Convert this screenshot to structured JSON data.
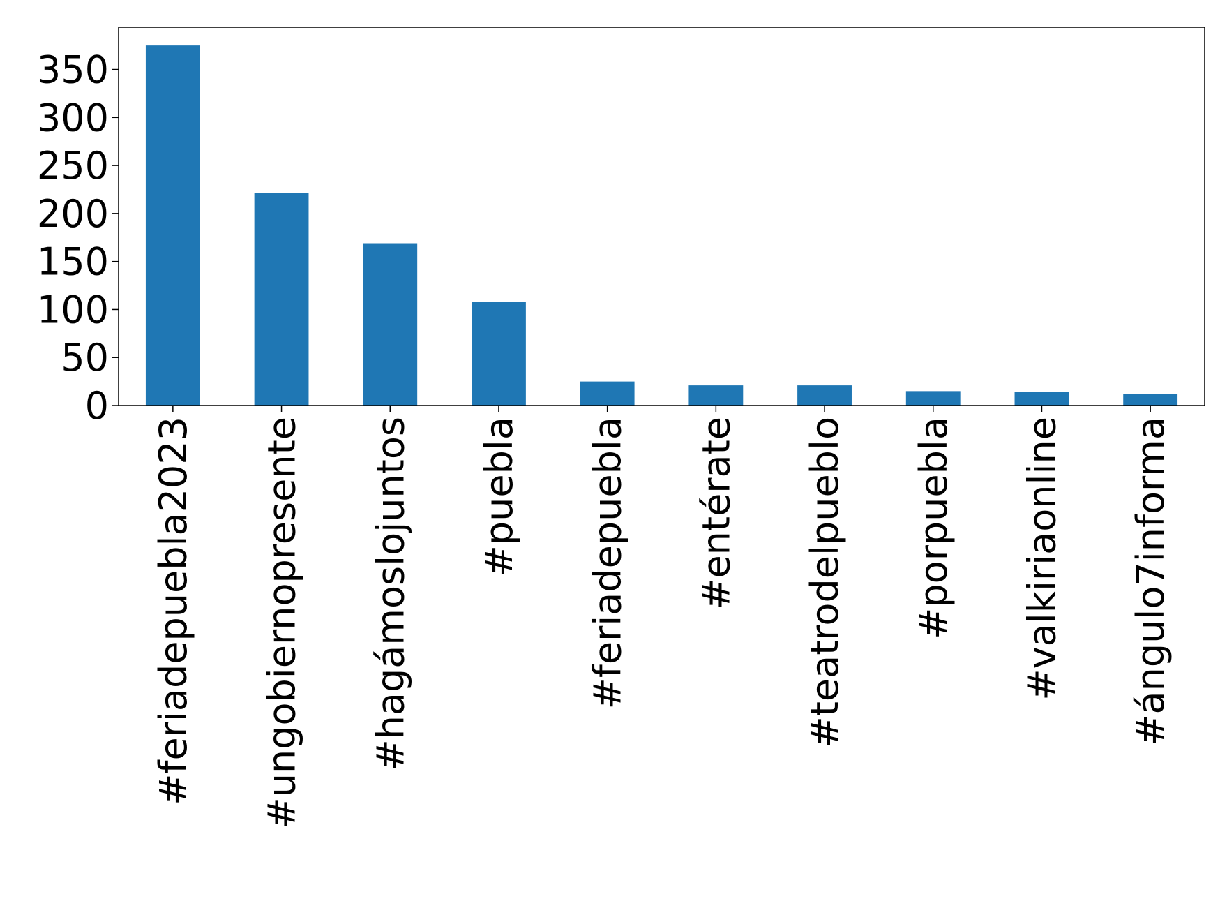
{
  "chart_data": {
    "type": "bar",
    "categories": [
      "#feriadepuebla2023",
      "#ungobiernopresente",
      "#hagámoslojuntos",
      "#puebla",
      "#feriadepuebla",
      "#entérate",
      "#teatrodelpueblo",
      "#porpuebla",
      "#valkiriaonline",
      "#ángulo7informa"
    ],
    "values": [
      375,
      221,
      169,
      108,
      25,
      21,
      21,
      15,
      14,
      12
    ],
    "color": "#1f77b4",
    "ylim": [
      0,
      394
    ],
    "yticks": [
      0,
      50,
      100,
      150,
      200,
      250,
      300,
      350
    ],
    "grid": false
  }
}
